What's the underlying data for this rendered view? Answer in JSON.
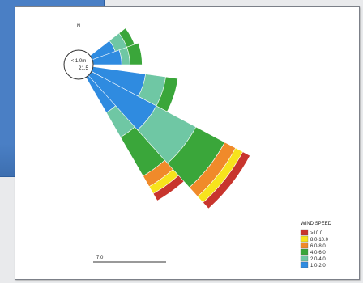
{
  "chart_data": {
    "type": "wind-rose",
    "north_label": "N",
    "calm_label": "< 1.0m",
    "calm_value": "21.5",
    "legend_title": "WIND SPEED",
    "legend_items": [
      {
        "label": ">10.0",
        "color": "#c8352d"
      },
      {
        "label": "8.0-10.0",
        "color": "#f7e31c"
      },
      {
        "label": "6.0-8.0",
        "color": "#f08a2a"
      },
      {
        "label": "4.0-6.0",
        "color": "#3aa63a"
      },
      {
        "label": "2.0-4.0",
        "color": "#6fc7a4"
      },
      {
        "label": "1.0-2.0",
        "color": "#2f8be0"
      }
    ],
    "scale_label": "7.0",
    "scale_max": 28,
    "sectors": [
      {
        "direction": "ENE",
        "center_deg": 62,
        "values": [
          3.0,
          4.5,
          5.5,
          0,
          0,
          0
        ]
      },
      {
        "direction": "E",
        "center_deg": 80,
        "values": [
          3.5,
          4.5,
          6.0,
          0,
          0,
          0
        ]
      },
      {
        "direction": "ESE",
        "center_deg": 108,
        "values": [
          6.5,
          9.0,
          10.5,
          0,
          0,
          0
        ]
      },
      {
        "direction": "SE",
        "center_deg": 140,
        "values": [
          5.0,
          8.5,
          14.0,
          15.5,
          16.5,
          17.5
        ]
      },
      {
        "direction": "SSE",
        "center_deg": 128,
        "values": [
          9.0,
          14.5,
          18.5,
          20.0,
          21.0,
          22.0
        ]
      }
    ]
  }
}
